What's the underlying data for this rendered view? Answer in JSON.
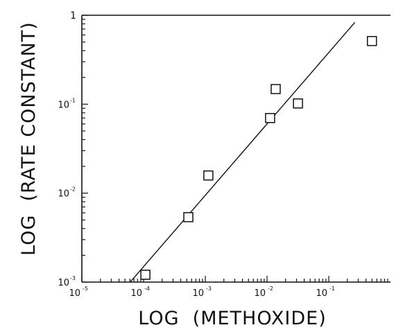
{
  "chart_data": {
    "type": "scatter",
    "title": "",
    "xlabel": "LOG  (METHOXIDE)",
    "ylabel": "LOG  (RATE CONSTANT)",
    "x_scale": "log",
    "y_scale": "log",
    "xlim": [
      1e-05,
      1
    ],
    "ylim": [
      0.001,
      1
    ],
    "grid": false,
    "x_ticks": [
      {
        "base": "10",
        "exp": "-5"
      },
      {
        "base": "10",
        "exp": "-4"
      },
      {
        "base": "10",
        "exp": "-3"
      },
      {
        "base": "10",
        "exp": "-2"
      },
      {
        "base": "10",
        "exp": "-1"
      }
    ],
    "y_ticks": [
      {
        "base": "10",
        "exp": "-3"
      },
      {
        "base": "10",
        "exp": "-2"
      },
      {
        "base": "10",
        "exp": "-1"
      },
      {
        "base": "1",
        "exp": ""
      }
    ],
    "series": [
      {
        "kind": "points",
        "marker": "open-square",
        "x": [
          0.000107,
          0.000531,
          0.00112,
          0.0112,
          0.0138,
          0.0317,
          0.5
        ],
        "y": [
          0.00121,
          0.00537,
          0.0158,
          0.0699,
          0.148,
          0.102,
          0.513
        ]
      },
      {
        "kind": "line",
        "x": [
          6.07e-05,
          0.265
        ],
        "y": [
          0.001,
          0.832
        ]
      }
    ]
  }
}
